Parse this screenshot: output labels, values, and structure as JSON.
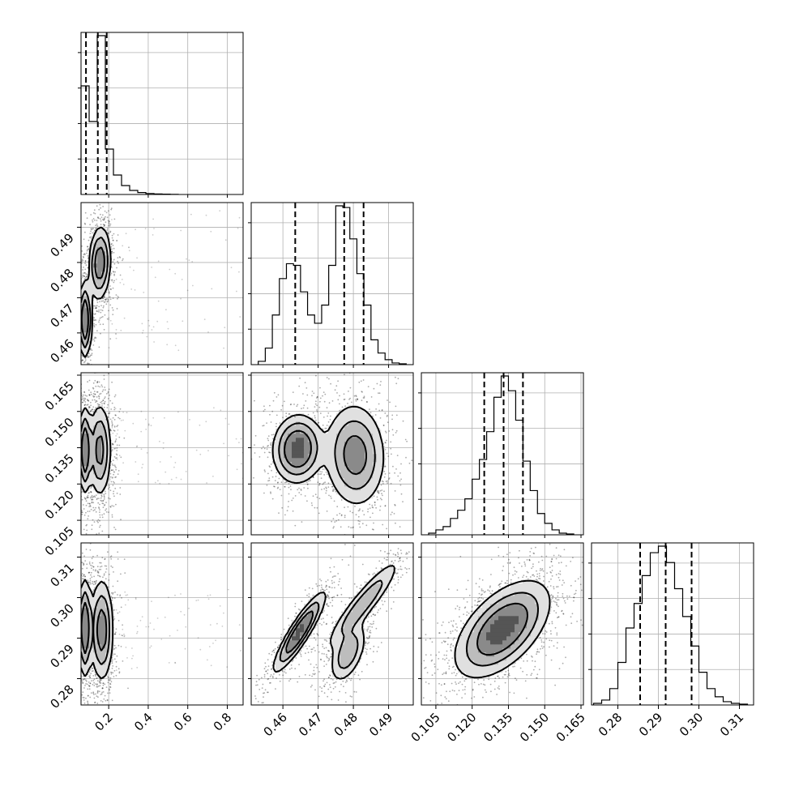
{
  "chart_data": {
    "type": "corner",
    "grid": true,
    "parameters": [
      {
        "id": "p0",
        "range": [
          0.06,
          0.88
        ],
        "ticks": [
          "0.2",
          "0.4",
          "0.6",
          "0.8"
        ],
        "quantiles": [
          0.085,
          0.145,
          0.19
        ],
        "hist_edges": [
          0.06,
          0.101,
          0.142,
          0.183,
          0.224,
          0.265,
          0.306,
          0.347,
          0.388,
          0.429,
          0.47,
          0.511,
          0.552
        ],
        "hist_counts": [
          0.67,
          0.45,
          0.98,
          0.28,
          0.12,
          0.055,
          0.025,
          0.012,
          0.006,
          0.003,
          0.002,
          0.001
        ]
      },
      {
        "id": "p1",
        "range": [
          0.451,
          0.497
        ],
        "ticks": [
          "0.46",
          "0.47",
          "0.48",
          "0.49"
        ],
        "quantiles": [
          0.4635,
          0.4774,
          0.4829
        ],
        "hist_edges": [
          0.453,
          0.455,
          0.457,
          0.459,
          0.461,
          0.463,
          0.465,
          0.467,
          0.469,
          0.471,
          0.473,
          0.475,
          0.477,
          0.479,
          0.481,
          0.483,
          0.485,
          0.487,
          0.489,
          0.491,
          0.493,
          0.495
        ],
        "hist_counts": [
          0.02,
          0.1,
          0.3,
          0.52,
          0.61,
          0.6,
          0.44,
          0.3,
          0.25,
          0.36,
          0.6,
          0.96,
          0.95,
          0.76,
          0.55,
          0.36,
          0.15,
          0.07,
          0.03,
          0.01,
          0.005
        ]
      },
      {
        "id": "p2",
        "range": [
          0.099,
          0.166
        ],
        "ticks": [
          "0.105",
          "0.120",
          "0.135",
          "0.150",
          "0.165"
        ],
        "quantiles": [
          0.125,
          0.133,
          0.141
        ],
        "hist_edges": [
          0.102,
          0.105,
          0.108,
          0.111,
          0.114,
          0.117,
          0.12,
          0.123,
          0.126,
          0.129,
          0.132,
          0.135,
          0.138,
          0.141,
          0.144,
          0.147,
          0.15,
          0.153,
          0.156,
          0.159,
          0.162
        ],
        "hist_counts": [
          0.01,
          0.03,
          0.05,
          0.1,
          0.15,
          0.22,
          0.34,
          0.46,
          0.63,
          0.84,
          0.97,
          0.88,
          0.7,
          0.45,
          0.27,
          0.13,
          0.07,
          0.03,
          0.01,
          0.005
        ]
      },
      {
        "id": "p3",
        "range": [
          0.2735,
          0.3135
        ],
        "ticks": [
          "0.28",
          "0.29",
          "0.30",
          "0.31"
        ],
        "quantiles": [
          0.2855,
          0.2918,
          0.2982
        ],
        "hist_edges": [
          0.274,
          0.276,
          0.278,
          0.28,
          0.282,
          0.284,
          0.286,
          0.288,
          0.29,
          0.292,
          0.294,
          0.296,
          0.298,
          0.3,
          0.302,
          0.304,
          0.306,
          0.308,
          0.31,
          0.312
        ],
        "hist_counts": [
          0.01,
          0.03,
          0.1,
          0.26,
          0.47,
          0.62,
          0.79,
          0.93,
          0.97,
          0.87,
          0.71,
          0.54,
          0.36,
          0.2,
          0.1,
          0.05,
          0.02,
          0.01,
          0.005
        ]
      }
    ],
    "hist_yticks": [
      0.22,
      0.44,
      0.66,
      0.88
    ],
    "panels_2d": [
      {
        "x": "p0",
        "y": "p1",
        "modes": [
          {
            "cx": 0.155,
            "cy": 0.4798,
            "sx": 0.027,
            "sy": 0.0052,
            "rho": 0.1,
            "w": 0.58
          },
          {
            "cx": 0.08,
            "cy": 0.4638,
            "sx": 0.016,
            "sy": 0.0052,
            "rho": 0.0,
            "w": 0.42
          }
        ],
        "tail": {
          "x": [
            0.2,
            0.88
          ],
          "y": [
            0.455,
            0.495
          ]
        }
      },
      {
        "x": "p0",
        "y": "p2",
        "modes": [
          {
            "cx": 0.155,
            "cy": 0.134,
            "sx": 0.028,
            "sy": 0.0095,
            "rho": 0.0,
            "w": 0.58
          },
          {
            "cx": 0.08,
            "cy": 0.134,
            "sx": 0.016,
            "sy": 0.0085,
            "rho": 0.0,
            "w": 0.42
          }
        ],
        "tail": {
          "x": [
            0.2,
            0.88
          ],
          "y": [
            0.12,
            0.152
          ]
        }
      },
      {
        "x": "p1",
        "y": "p2",
        "modes": [
          {
            "cx": 0.4642,
            "cy": 0.1345,
            "sx": 0.0034,
            "sy": 0.0068,
            "rho": 0.05,
            "w": 0.42
          },
          {
            "cx": 0.4805,
            "cy": 0.132,
            "sx": 0.0042,
            "sy": 0.0105,
            "rho": -0.05,
            "w": 0.58
          }
        ]
      },
      {
        "x": "p0",
        "y": "p3",
        "modes": [
          {
            "cx": 0.165,
            "cy": 0.292,
            "sx": 0.028,
            "sy": 0.0062,
            "rho": 0.0,
            "w": 0.58
          },
          {
            "cx": 0.08,
            "cy": 0.2925,
            "sx": 0.017,
            "sy": 0.0058,
            "rho": 0.0,
            "w": 0.42
          }
        ],
        "tail": {
          "x": [
            0.2,
            0.88
          ],
          "y": [
            0.282,
            0.302
          ]
        }
      },
      {
        "x": "p1",
        "y": "p3",
        "modes": [
          {
            "cx": 0.4647,
            "cy": 0.2915,
            "sx": 0.0036,
            "sy": 0.0048,
            "rho": 0.9,
            "w": 0.42
          },
          {
            "cx": 0.4828,
            "cy": 0.2985,
            "sx": 0.0052,
            "sy": 0.0055,
            "rho": 0.92,
            "w": 0.33
          },
          {
            "cx": 0.4785,
            "cy": 0.2865,
            "sx": 0.0026,
            "sy": 0.0038,
            "rho": 0.5,
            "w": 0.25
          }
        ]
      },
      {
        "x": "p2",
        "y": "p3",
        "modes": [
          {
            "cx": 0.1325,
            "cy": 0.2922,
            "sx": 0.0095,
            "sy": 0.0058,
            "rho": 0.55,
            "w": 1.0
          }
        ]
      }
    ]
  }
}
